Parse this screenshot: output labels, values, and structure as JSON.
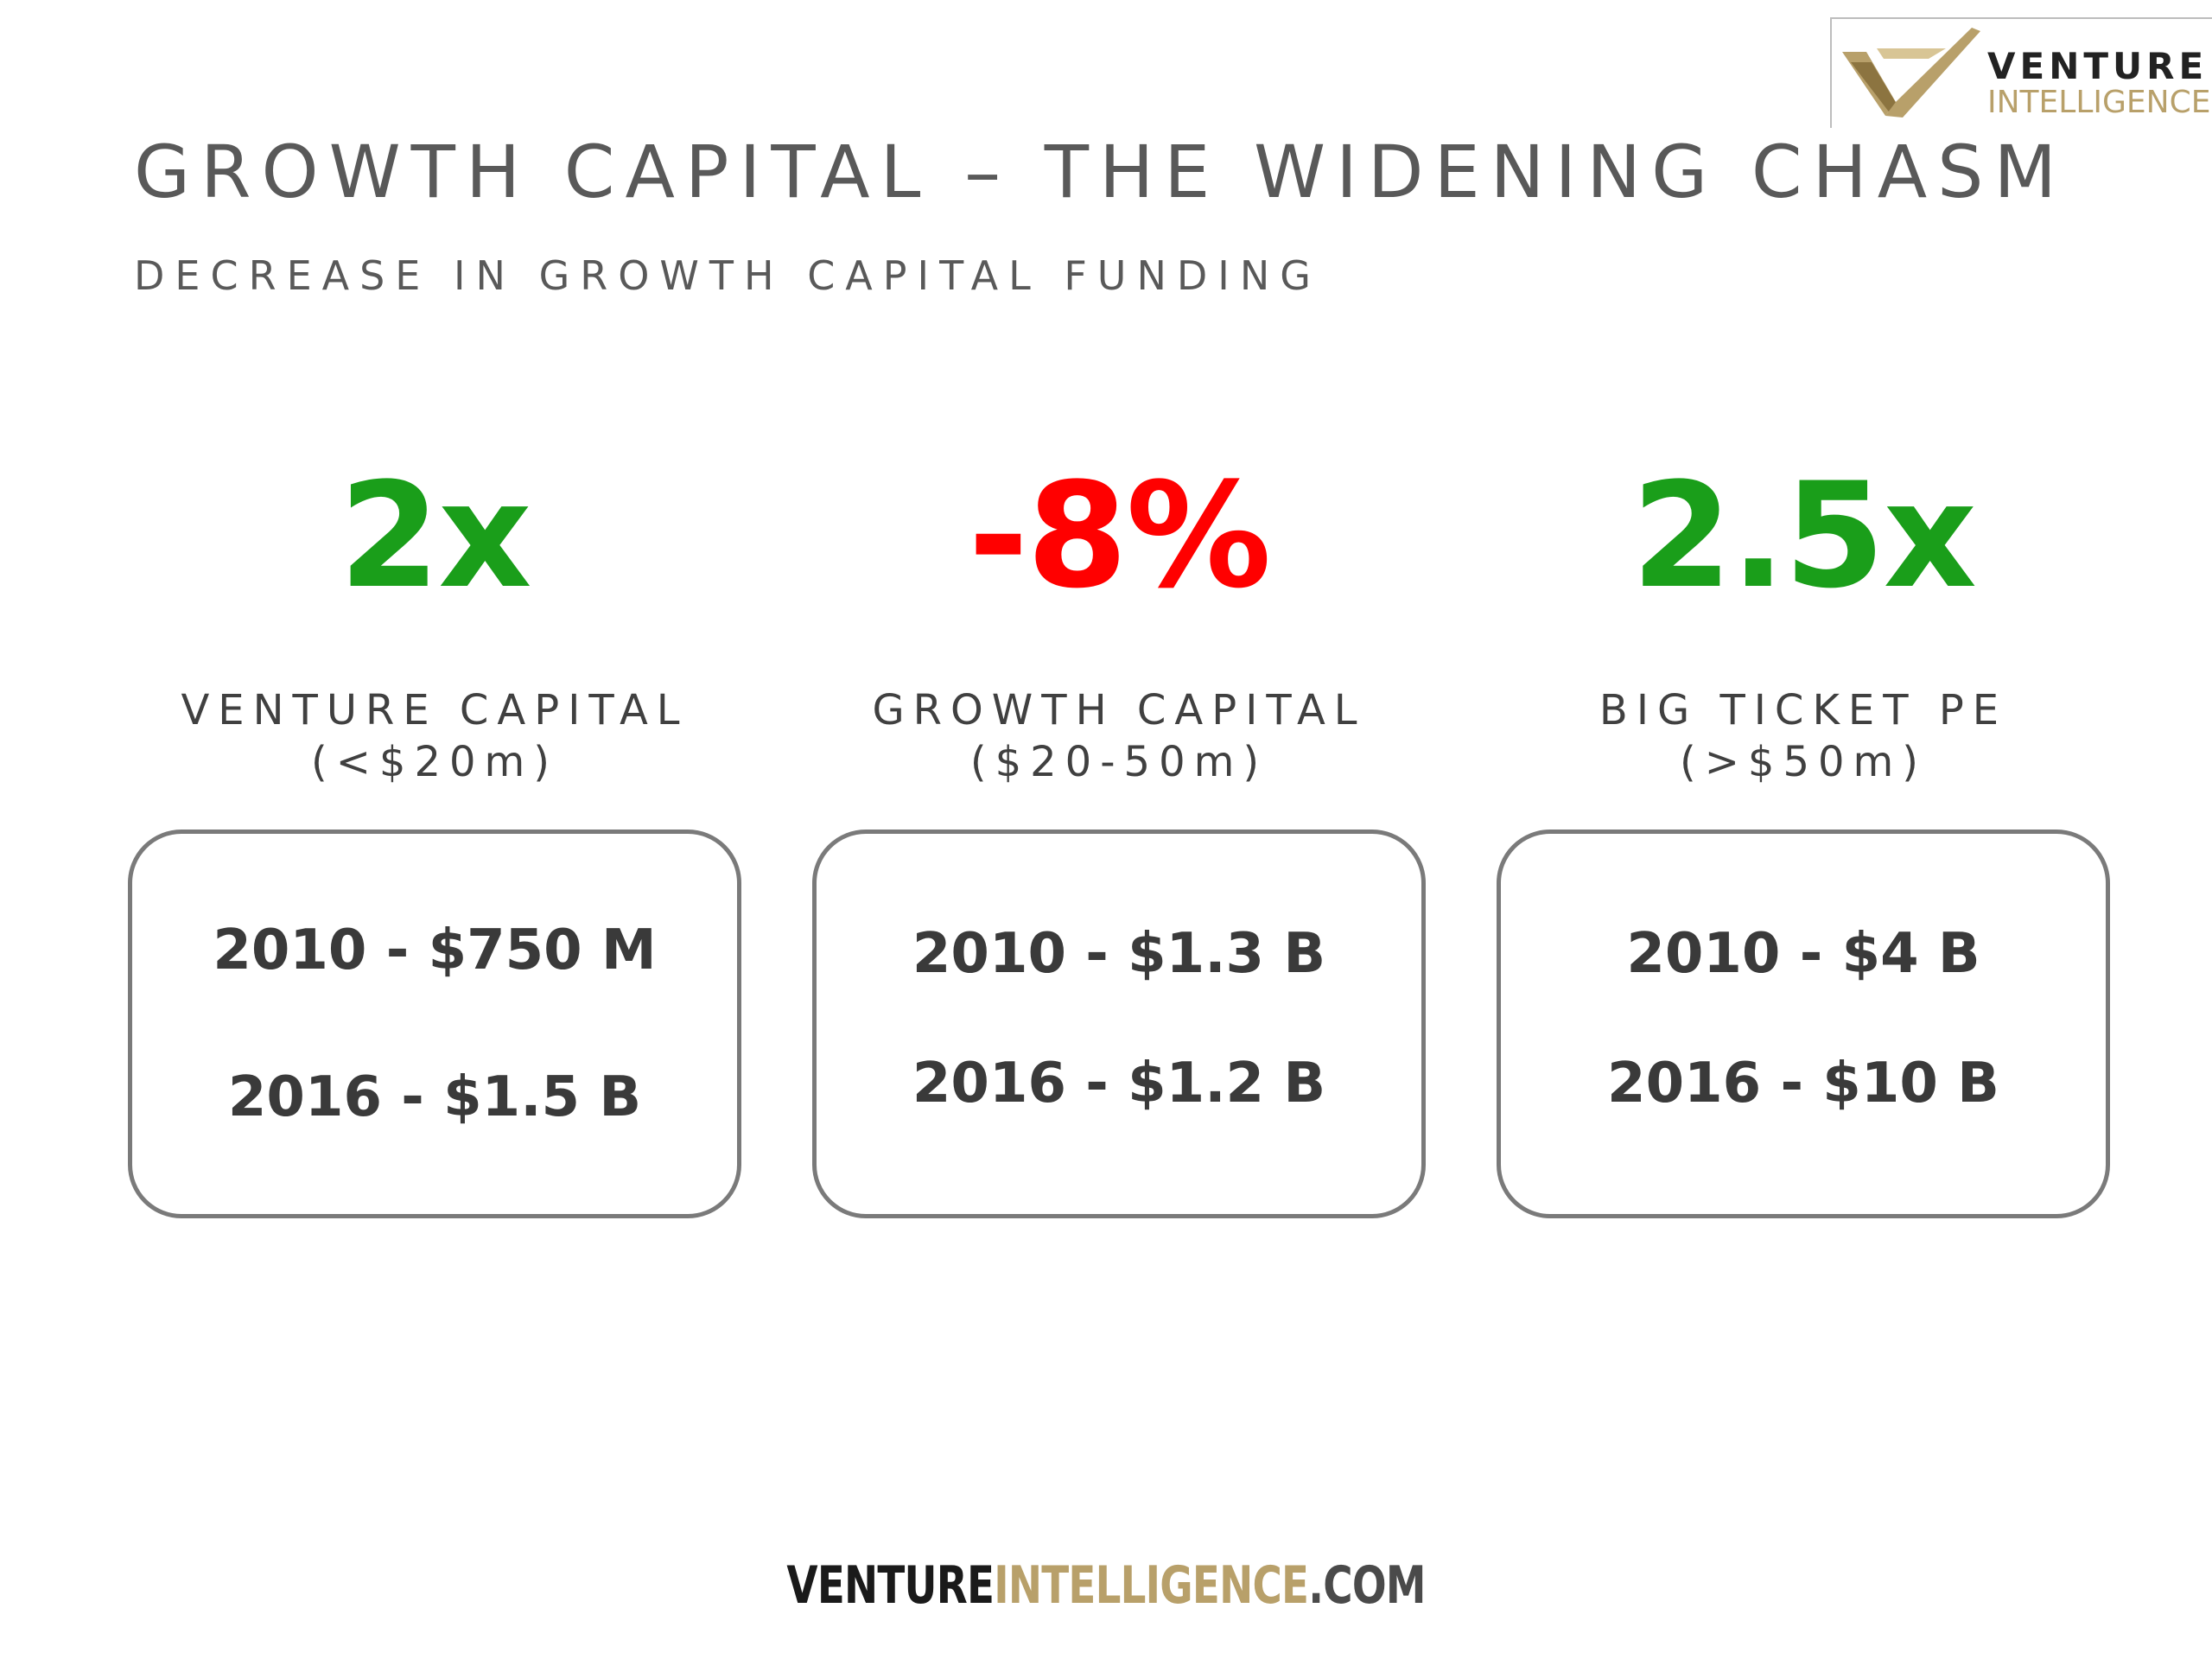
{
  "logo": {
    "line1": "VENTURE",
    "line2": "INTELLIGENCE",
    "colors": {
      "gold": "#b8a06a",
      "dark": "#222222"
    }
  },
  "slide": {
    "title": "GROWTH CAPITAL – THE WIDENING CHASM",
    "subtitle": "DECREASE IN GROWTH CAPITAL FUNDING"
  },
  "columns": [
    {
      "metric": "2x",
      "metric_color": "#1a9e1a",
      "category": "VENTURE CAPITAL",
      "range": "(<$20m)",
      "line_2010": "2010 - $750 M",
      "line_2016": "2016 - $1.5 B"
    },
    {
      "metric": "-8%",
      "metric_color": "#ff0000",
      "category": "GROWTH CAPITAL",
      "range": "($20-50m)",
      "line_2010": "2010 - $1.3 B",
      "line_2016": "2016 - $1.2 B"
    },
    {
      "metric": "2.5x",
      "metric_color": "#1a9e1a",
      "category": "BIG TICKET PE",
      "range": "(>$50m)",
      "line_2010": "2010 - $4 B",
      "line_2016": "2016 - $10 B"
    }
  ],
  "footer": {
    "part1": "VENTURE",
    "part2": "INTELLIGENCE",
    "part3": ".COM"
  }
}
